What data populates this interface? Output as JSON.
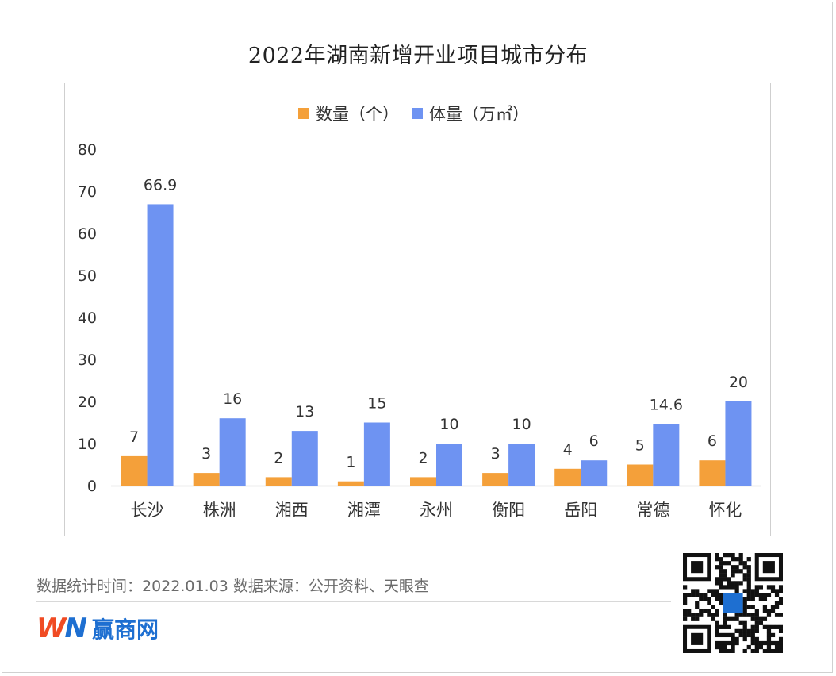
{
  "title": "2022年湖南新增开业项目城市分布",
  "legend": {
    "count_label": "数量（个）",
    "volume_label": "体量（万㎡）"
  },
  "colors": {
    "count": "#F4A03A",
    "volume": "#6E93F2",
    "axis_text": "#333333",
    "baseline": "#d9d9d9"
  },
  "chart_data": {
    "type": "bar",
    "categories": [
      "长沙",
      "株洲",
      "湘西",
      "湘潭",
      "永州",
      "衡阳",
      "岳阳",
      "常德",
      "怀化"
    ],
    "series": [
      {
        "name": "数量（个）",
        "values": [
          7,
          3,
          2,
          1,
          2,
          3,
          4,
          5,
          6
        ]
      },
      {
        "name": "体量（万㎡）",
        "values": [
          66.9,
          16,
          13,
          15,
          10,
          10,
          6,
          14.6,
          20
        ]
      }
    ],
    "y_ticks": [
      0,
      10,
      20,
      30,
      40,
      50,
      60,
      70,
      80
    ],
    "ylim": [
      0,
      80
    ],
    "grid": false,
    "legend_position": "top"
  },
  "footer": {
    "note": "数据统计时间：2022.01.03  数据来源：公开资料、天眼查",
    "brand_logo": "WN",
    "brand_name": "赢商网"
  },
  "icons": {
    "qr": "qr-code-icon"
  }
}
